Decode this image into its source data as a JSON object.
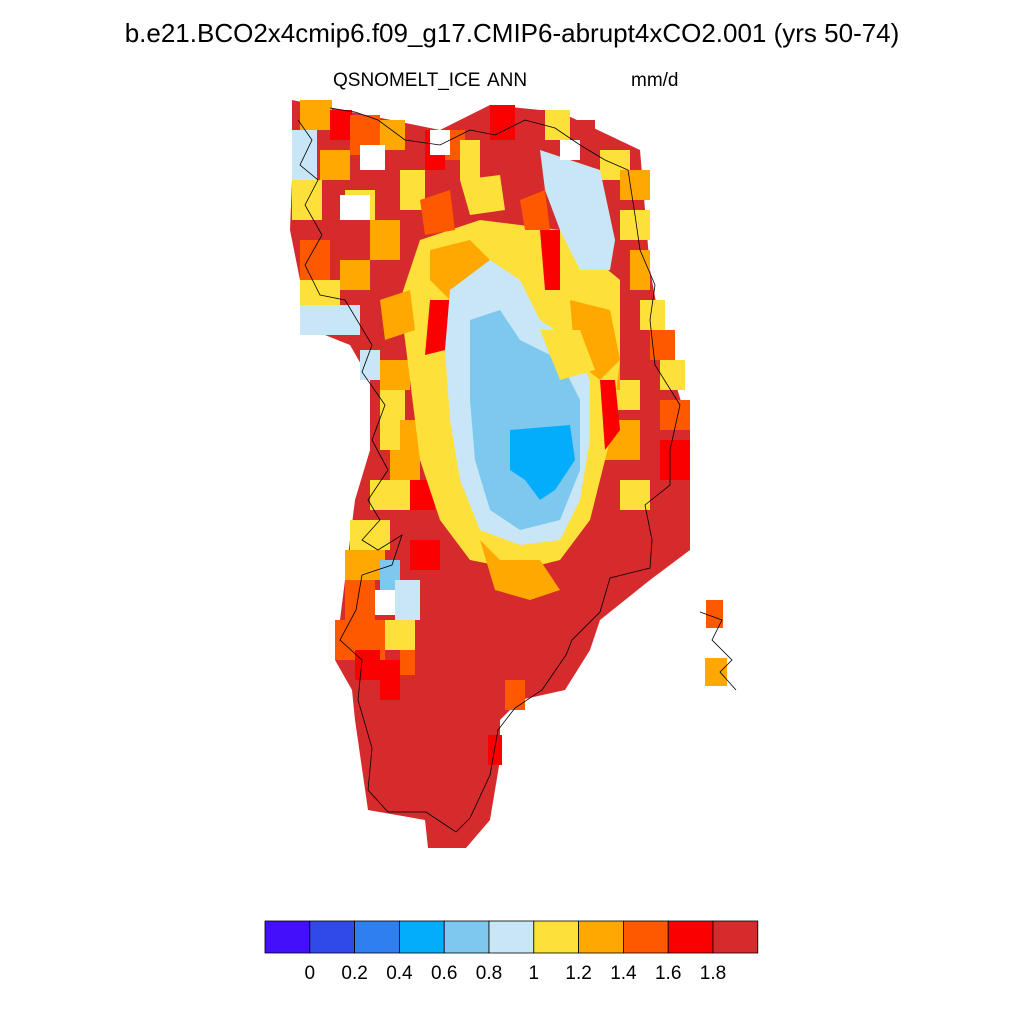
{
  "header": {
    "title": "b.e21.BCO2x4cmip6.f09_g17.CMIP6-abrupt4xCO2.001 (yrs 50-74)",
    "variable": "QSNOMELT_ICE",
    "season": "ANN",
    "units": "mm/d"
  },
  "colorbar": {
    "colors": [
      "#4410fb",
      "#2f4ae9",
      "#2e7ff0",
      "#04adfc",
      "#7cc8ef",
      "#c8e6f5",
      "#fee03a",
      "#fea801",
      "#fe5800",
      "#fa0000",
      "#d52b2d"
    ],
    "tick_labels": [
      "0",
      "0.2",
      "0.4",
      "0.6",
      "0.8",
      "1",
      "1.2",
      "1.4",
      "1.6",
      "1.8"
    ]
  },
  "map": {
    "region": "Greenland",
    "field_levels": {
      "colors": [
        "#c8e6f5",
        "#fee03a",
        "#fea801",
        "#fe5800",
        "#fa0000",
        "#d52b2d"
      ]
    }
  }
}
